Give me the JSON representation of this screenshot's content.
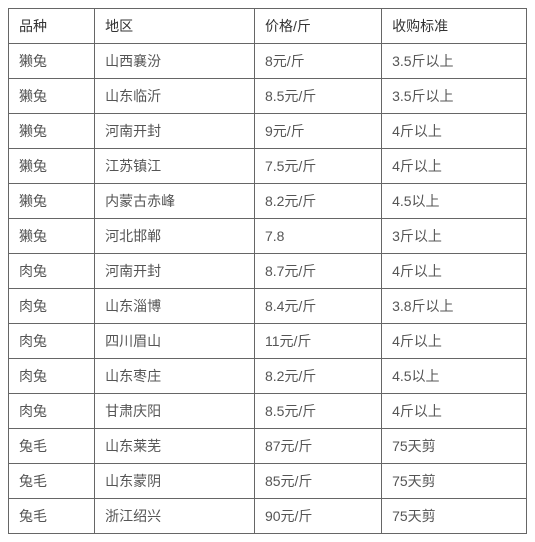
{
  "table": {
    "columns": [
      "品种",
      "地区",
      "价格/斤",
      "收购标准"
    ],
    "rows": [
      [
        "獭兔",
        "山西襄汾",
        "8元/斤",
        "3.5斤以上"
      ],
      [
        "獭兔",
        "山东临沂",
        "8.5元/斤",
        "3.5斤以上"
      ],
      [
        "獭兔",
        "河南开封",
        "9元/斤",
        "4斤以上"
      ],
      [
        "獭兔",
        "江苏镇江",
        "7.5元/斤",
        "4斤以上"
      ],
      [
        "獭兔",
        "内蒙古赤峰",
        "8.2元/斤",
        "4.5以上"
      ],
      [
        "獭兔",
        "河北邯郸",
        "7.8",
        "3斤以上"
      ],
      [
        "肉兔",
        "河南开封",
        "8.7元/斤",
        "4斤以上"
      ],
      [
        "肉兔",
        "山东淄博",
        "8.4元/斤",
        "3.8斤以上"
      ],
      [
        "肉兔",
        "四川眉山",
        "11元/斤",
        "4斤以上"
      ],
      [
        "肉兔",
        "山东枣庄",
        "8.2元/斤",
        "4.5以上"
      ],
      [
        "肉兔",
        "甘肃庆阳",
        "8.5元/斤",
        "4斤以上"
      ],
      [
        "兔毛",
        "山东莱芜",
        "87元/斤",
        "75天剪"
      ],
      [
        "兔毛",
        "山东蒙阴",
        "85元/斤",
        "75天剪"
      ],
      [
        "兔毛",
        "浙江绍兴",
        "90元/斤",
        "75天剪"
      ]
    ],
    "column_widths": [
      "130px",
      "130px",
      "130px",
      "129px"
    ],
    "border_color": "#666666",
    "background_color": "#ffffff",
    "font_size": 14,
    "text_color": "#333333"
  }
}
